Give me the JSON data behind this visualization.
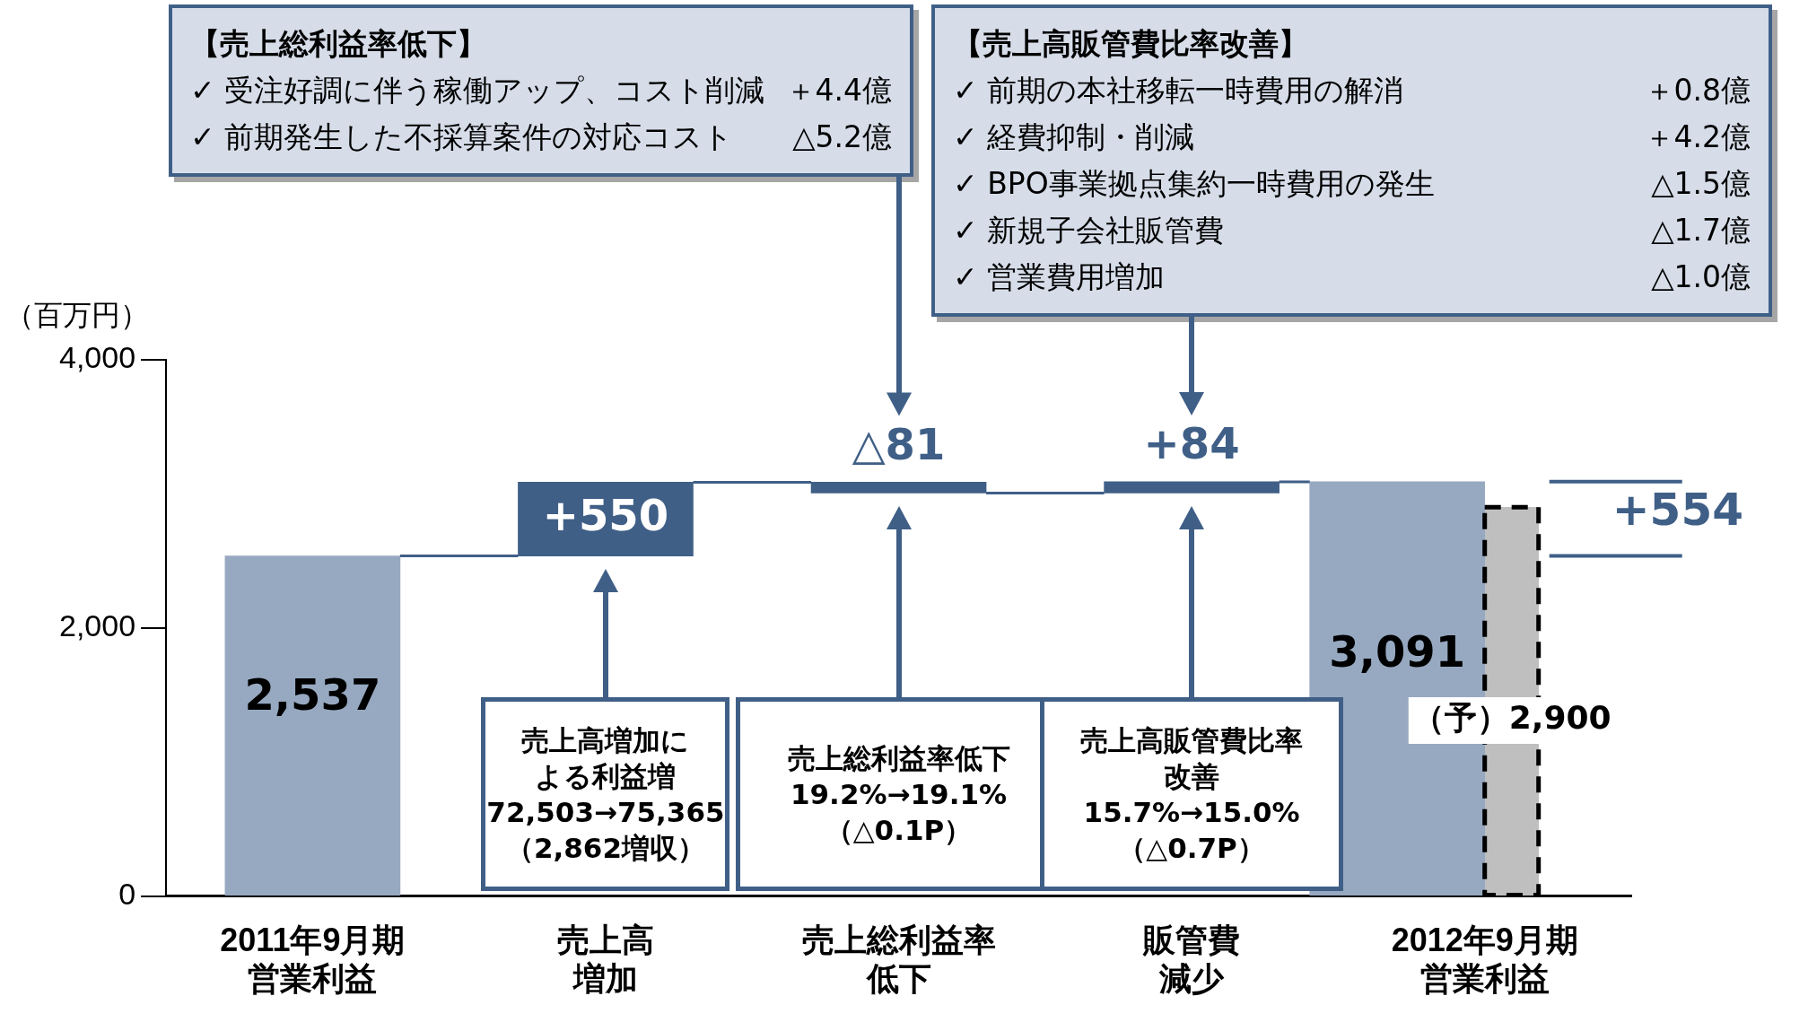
{
  "chart_data": {
    "type": "bar",
    "ylabel": "（百万円）",
    "categories": [
      "2011年9月期営業利益",
      "売上高増加",
      "売上総利益率低下",
      "販管費減少",
      "2012年9月期営業利益"
    ],
    "series": [
      {
        "values": [
          2537,
          550,
          -81,
          84,
          3091
        ],
        "base": [
          0,
          2537,
          3087,
          3006,
          0
        ],
        "colors": [
          "#97a9c1",
          "#3f5f87",
          "#3f5f87",
          "#3f5f87",
          "#97a9c1"
        ],
        "value_labels": [
          "2,537",
          "+550",
          "△81",
          "+84",
          "3,091"
        ]
      },
      {
        "values": [
          null,
          null,
          null,
          null,
          2900
        ],
        "color": "#bfbfbf",
        "value_labels": [
          null,
          null,
          null,
          null,
          "（予）2,900"
        ]
      }
    ],
    "ylim": [
      0,
      4000
    ],
    "yticks": [
      0,
      {
        "value": 2000,
        "label": "2,000"
      },
      {
        "value": 4000,
        "label": "4,000"
      }
    ],
    "legend": false,
    "grid": false,
    "annotations": [
      "【売上総利益率低下】\n✓ 受注好調に伴う稼働アップ、コスト削減\t＋4.4億\n✓ 前期発生した不採算案件の対応コスト\t△5.2億",
      "【売上高販管費比率改善】\n✓ 前期の本社移転一時費用の解消\t＋0.8億\n✓ 経費抑制・削減\t＋4.2億\n✓ BPO事業拠点集約一時費用の発生\t△1.5億\n✓ 新規子会社販管費\t△1.7億\n✓ 営業費用増加\t△1.0億",
      "売上高増加による利益増\n72,503→75,365\n（2,862増収）",
      "売上総利益率低下\n19.2%→19.1%\n（△0.1P）",
      "売上高販管費比率改善\n15.7%→15.0%\n（△0.7P）",
      "+554"
    ]
  }
}
